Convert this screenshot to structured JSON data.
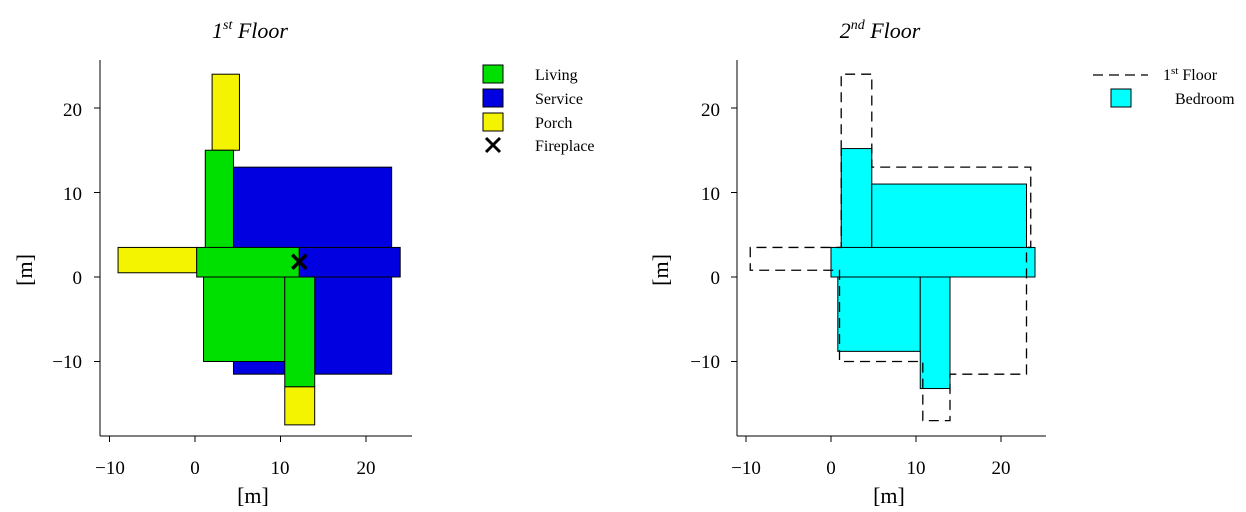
{
  "colors": {
    "living": "#00e000",
    "service": "#0000e0",
    "porch": "#f4f400",
    "bedroom": "#00ffff"
  },
  "plots": [
    {
      "title_main": "1",
      "title_sup": "st",
      "title_rest": " Floor",
      "xlabel": "[m]",
      "ylabel": "[m]",
      "xticks": [
        "−10",
        "0",
        "10",
        "20"
      ],
      "yticks": [
        "20",
        "10",
        "0",
        "−10"
      ]
    },
    {
      "title_main": "2",
      "title_sup": "nd",
      "title_rest": " Floor",
      "xlabel": "[m]",
      "ylabel": "[m]",
      "xticks": [
        "−10",
        "0",
        "10",
        "20"
      ],
      "yticks": [
        "20",
        "10",
        "0",
        "−10"
      ]
    }
  ],
  "legend1": [
    {
      "label": "Living",
      "key": "living"
    },
    {
      "label": "Service",
      "key": "service"
    },
    {
      "label": "Porch",
      "key": "porch"
    },
    {
      "label": "Fireplace",
      "key": "fireplace"
    }
  ],
  "legend2": {
    "first_floor_main": "1",
    "first_floor_sup": "st",
    "first_floor_rest": " Floor",
    "bedroom": "Bedroom"
  },
  "rooms1": [
    {
      "type": "porch",
      "x": [
        2,
        5.2
      ],
      "y": [
        15,
        24
      ]
    },
    {
      "type": "service",
      "x": [
        4.5,
        23
      ],
      "y": [
        -11.5,
        13
      ]
    },
    {
      "type": "living",
      "x": [
        1.2,
        4.5
      ],
      "y": [
        0,
        15
      ]
    },
    {
      "type": "porch",
      "x": [
        -9,
        0.2
      ],
      "y": [
        0.5,
        3.5
      ]
    },
    {
      "type": "living",
      "x": [
        0.2,
        12.2
      ],
      "y": [
        0,
        3.5
      ]
    },
    {
      "type": "service",
      "x": [
        12.2,
        24
      ],
      "y": [
        0,
        3.5
      ]
    },
    {
      "type": "living",
      "x": [
        1,
        10.5
      ],
      "y": [
        -10,
        0
      ]
    },
    {
      "type": "living",
      "x": [
        10.5,
        14
      ],
      "y": [
        -13,
        0
      ]
    },
    {
      "type": "porch",
      "x": [
        10.5,
        14
      ],
      "y": [
        -17.5,
        -13
      ]
    }
  ],
  "fireplace": {
    "x": 12.2,
    "y": 1.8
  },
  "rooms2": [
    {
      "x": [
        1.2,
        4.8
      ],
      "y": [
        0,
        15.2
      ]
    },
    {
      "x": [
        4.8,
        23
      ],
      "y": [
        0,
        11
      ]
    },
    {
      "x": [
        0,
        24
      ],
      "y": [
        0,
        3.5
      ]
    },
    {
      "x": [
        0.8,
        10.5
      ],
      "y": [
        -8.8,
        0
      ]
    },
    {
      "x": [
        10.5,
        14
      ],
      "y": [
        -13.2,
        0
      ]
    }
  ],
  "outline2": [
    [
      1.2,
      15
    ],
    [
      1.2,
      24
    ],
    [
      4.8,
      24
    ],
    [
      4.8,
      13
    ],
    [
      23.5,
      13
    ],
    [
      23.5,
      3.5
    ],
    [
      23,
      3.5
    ],
    [
      23,
      -11.5
    ],
    [
      14,
      -11.5
    ],
    [
      14,
      -17
    ],
    [
      10.8,
      -17
    ],
    [
      10.8,
      -10
    ],
    [
      1,
      -10
    ],
    [
      1,
      0.8
    ],
    [
      -9.5,
      0.8
    ],
    [
      -9.5,
      3.5
    ],
    [
      1.2,
      3.5
    ],
    [
      1.2,
      15
    ]
  ]
}
